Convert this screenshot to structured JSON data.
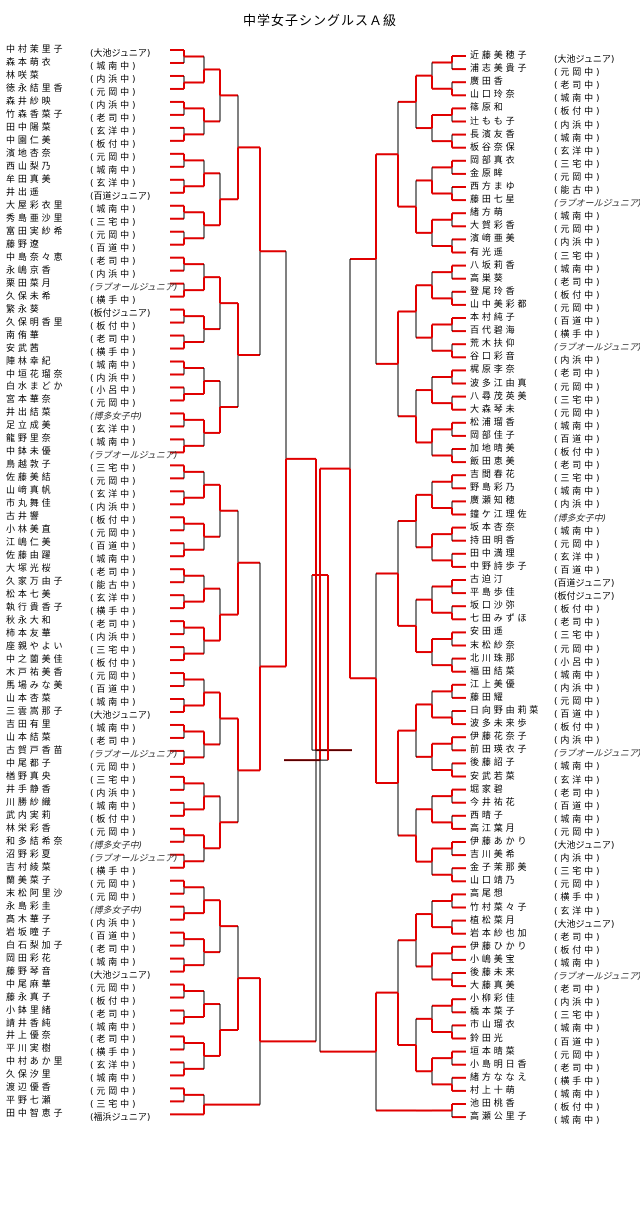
{
  "title": "中学女子シングルスＡ級",
  "left": [
    {
      "name": "中 村 茉 里 子",
      "school": "(大池ジュニア)"
    },
    {
      "name": "森 本 萌 衣",
      "school": "( 城 南 中 )"
    },
    {
      "name": "林 咲 菜",
      "school": "( 内 浜 中 )"
    },
    {
      "name": "徳 永 結 里 香",
      "school": "( 元 岡 中 )"
    },
    {
      "name": "森 井 紗 映",
      "school": "( 内 浜 中 )"
    },
    {
      "name": "竹 森 香 菜 子",
      "school": "( 老 司 中 )"
    },
    {
      "name": "田 中 陽 菜",
      "school": "( 玄 洋 中 )"
    },
    {
      "name": "中 園 仁 美",
      "school": "( 板 付 中 )"
    },
    {
      "name": "濱 地 杏 奈",
      "school": "( 元 岡 中 )"
    },
    {
      "name": "西 山 梨 乃",
      "school": "( 城 南 中 )"
    },
    {
      "name": "牟 田 真 美",
      "school": "( 玄 洋 中 )"
    },
    {
      "name": "井 出 遥",
      "school": "(百道ジュニア)"
    },
    {
      "name": "大 屋 彩 衣 里",
      "school": "( 城 南 中 )"
    },
    {
      "name": "秀 島 亜 沙 里",
      "school": "( 三 宅 中 )"
    },
    {
      "name": "富 田 実 紗 希",
      "school": "( 元 岡 中 )"
    },
    {
      "name": "藤 野 遼",
      "school": "( 百 道 中 )"
    },
    {
      "name": "中 島 奈 々 恵",
      "school": "( 老 司 中 )"
    },
    {
      "name": "永 嶋 京 香",
      "school": "( 内 浜 中 )"
    },
    {
      "name": "栗 田 菜 月",
      "school": "(ラブオールジュニア)"
    },
    {
      "name": "久 保 未 希",
      "school": "( 横 手 中 )"
    },
    {
      "name": "繁 永 葵",
      "school": "(板付ジュニア)"
    },
    {
      "name": "久 保 明 香 里",
      "school": "( 板 付 中 )"
    },
    {
      "name": "南 侑 華",
      "school": "( 老 司 中 )"
    },
    {
      "name": "安 武 茜",
      "school": "( 横 手 中 )"
    },
    {
      "name": "陣 林 幸 紀",
      "school": "( 城 南 中 )"
    },
    {
      "name": "中 垣 花 瑠 奈",
      "school": "( 内 浜 中 )"
    },
    {
      "name": "白 水 ま ど か",
      "school": "( 小 呂 中 )"
    },
    {
      "name": "宮 本 華 奈",
      "school": "( 元 岡 中 )"
    },
    {
      "name": "井 出 結 菜",
      "school": "(博多女子中)"
    },
    {
      "name": "足 立 成 美",
      "school": "( 玄 洋 中 )"
    },
    {
      "name": "龍 野 里 奈",
      "school": "( 城 南 中 )"
    },
    {
      "name": "中 鉢 未 優",
      "school": "(ラブオールジュニア)"
    },
    {
      "name": "鳥 越 敦 子",
      "school": "( 三 宅 中 )"
    },
    {
      "name": "佐 藤 美 結",
      "school": "( 元 岡 中 )"
    },
    {
      "name": "山 﨑 真 帆",
      "school": "( 玄 洋 中 )"
    },
    {
      "name": "市 丸 舞 佳",
      "school": "( 内 浜 中 )"
    },
    {
      "name": "古 井 響",
      "school": "( 板 付 中 )"
    },
    {
      "name": "小 林 美 直",
      "school": "( 元 岡 中 )"
    },
    {
      "name": "江 嶋 仁 美",
      "school": "( 百 道 中 )"
    },
    {
      "name": "佐 藤 由 躍",
      "school": "( 城 南 中 )"
    },
    {
      "name": "大 塚 光 桜",
      "school": "( 老 司 中 )"
    },
    {
      "name": "久 家 万 由 子",
      "school": "( 能 古 中 )"
    },
    {
      "name": "松 本 七 美",
      "school": "( 玄 洋 中 )"
    },
    {
      "name": "執 行 貴 香 子",
      "school": "( 横 手 中 )"
    },
    {
      "name": "秋 永 大 和",
      "school": "( 老 司 中 )"
    },
    {
      "name": "柿 本 友 華",
      "school": "( 内 浜 中 )"
    },
    {
      "name": "座 親 や よ い",
      "school": "( 三 宅 中 )"
    },
    {
      "name": "中 之 薗 美 佳",
      "school": "( 板 付 中 )"
    },
    {
      "name": "木 戸 祐 美 香",
      "school": "( 元 岡 中 )"
    },
    {
      "name": "馬 場 み な 美",
      "school": "( 百 道 中 )"
    },
    {
      "name": "山 本 杏 菜",
      "school": "( 城 南 中 )"
    },
    {
      "name": "三 雲 嵩 那 子",
      "school": "(大池ジュニア)"
    },
    {
      "name": "吉 田 有 里",
      "school": "( 城 南 中 )"
    },
    {
      "name": "山 本 結 菜",
      "school": "( 老 司 中 )"
    },
    {
      "name": "古 賀 戸 香 苗",
      "school": "(ラブオールジュニア)"
    },
    {
      "name": "中 尾 都 子",
      "school": "( 元 岡 中 )"
    },
    {
      "name": "楢 野 真 央",
      "school": "( 三 宅 中 )"
    },
    {
      "name": "井 手 静 香",
      "school": "( 内 浜 中 )"
    },
    {
      "name": "川 勝 紗 織",
      "school": "( 城 南 中 )"
    },
    {
      "name": "武 内 実 莉",
      "school": "( 板 付 中 )"
    },
    {
      "name": "林 栄 彩 香",
      "school": "( 元 岡 中 )"
    },
    {
      "name": "和 多 結 希 奈",
      "school": "(博多女子中)"
    },
    {
      "name": "沼 野 彩 夏",
      "school": "(ラブオールジュニア)"
    },
    {
      "name": "吉 村 綾 菜",
      "school": "( 横 手 中 )"
    },
    {
      "name": "蘭 美 菜 子",
      "school": "( 元 岡 中 )"
    },
    {
      "name": "末 松 阿 里 沙",
      "school": "( 元 岡 中 )"
    },
    {
      "name": "永 島 彩 圭",
      "school": "(博多女子中)"
    },
    {
      "name": "髙 木 華 子",
      "school": "( 内 浜 中 )"
    },
    {
      "name": "岩 坂 瞳 子",
      "school": "( 百 道 中 )"
    },
    {
      "name": "白 石 梨 加 子",
      "school": "( 老 司 中 )"
    },
    {
      "name": "岡 田 彩 花",
      "school": "( 城 南 中 )"
    },
    {
      "name": "藤 野 琴 音",
      "school": "(大池ジュニア)"
    },
    {
      "name": "中 尾 麻 華",
      "school": "( 元 岡 中 )"
    },
    {
      "name": "藤 永 真 子",
      "school": "( 板 付 中 )"
    },
    {
      "name": "小 鉢 里 緒",
      "school": "( 老 司 中 )"
    },
    {
      "name": "請 井 香 純",
      "school": "( 城 南 中 )"
    },
    {
      "name": "井 上 優 奈",
      "school": "( 老 司 中 )"
    },
    {
      "name": "平 川 実 樹",
      "school": "( 横 手 中 )"
    },
    {
      "name": "中 村 あ か 里",
      "school": "( 玄 洋 中 )"
    },
    {
      "name": "久 保 汐 里",
      "school": "( 城 南 中 )"
    },
    {
      "name": "渡 辺 優 香",
      "school": "( 元 岡 中 )"
    },
    {
      "name": "平 野 七 瀬",
      "school": "( 三 宅 中 )"
    },
    {
      "name": "田 中 智 恵 子",
      "school": "(福浜ジュニア)"
    }
  ],
  "right": [
    {
      "name": "近 藤 美 穂 子",
      "school": "(大池ジュニア)"
    },
    {
      "name": "浦 志 美 貴 子",
      "school": "( 元 岡 中 )"
    },
    {
      "name": "廣 田 香",
      "school": "( 老 司 中 )"
    },
    {
      "name": "山 口 玲 奈",
      "school": "( 城 南 中 )"
    },
    {
      "name": "篠 原 和",
      "school": "( 板 付 中 )"
    },
    {
      "name": "辻 も も 子",
      "school": "( 内 浜 中 )"
    },
    {
      "name": "長 濱 友 香",
      "school": "( 城 南 中 )"
    },
    {
      "name": "板 谷 奈 保",
      "school": "( 玄 洋 中 )"
    },
    {
      "name": "岡 部 真 衣",
      "school": "( 三 宅 中 )"
    },
    {
      "name": "金 原 眸",
      "school": "( 元 岡 中 )"
    },
    {
      "name": "西 方 ま ゆ",
      "school": "( 能 古 中 )"
    },
    {
      "name": "藤 田 七 星",
      "school": "(ラブオールジュニア)"
    },
    {
      "name": "緒 方 萌",
      "school": "( 城 南 中 )"
    },
    {
      "name": "大 賀 彩 香",
      "school": "( 元 岡 中 )"
    },
    {
      "name": "濱 﨑 亜 美",
      "school": "( 内 浜 中 )"
    },
    {
      "name": "有 光 遥",
      "school": "( 三 宅 中 )"
    },
    {
      "name": "八 坂 莉 香",
      "school": "( 城 南 中 )"
    },
    {
      "name": "高 巣 葵",
      "school": "( 老 司 中 )"
    },
    {
      "name": "登 尾 玲 香",
      "school": "( 板 付 中 )"
    },
    {
      "name": "山 中 美 彩 都",
      "school": "( 元 岡 中 )"
    },
    {
      "name": "本 村 純 子",
      "school": "( 百 道 中 )"
    },
    {
      "name": "百 代 碧 海",
      "school": "( 横 手 中 )"
    },
    {
      "name": "荒 木 扶 仰",
      "school": "(ラブオールジュニア)"
    },
    {
      "name": "谷 口 彩 音",
      "school": "( 内 浜 中 )"
    },
    {
      "name": "梶 原 李 奈",
      "school": "( 老 司 中 )"
    },
    {
      "name": "波 多 江 由 真",
      "school": "( 元 岡 中 )"
    },
    {
      "name": "八 尋 茂 英 美",
      "school": "( 三 宅 中 )"
    },
    {
      "name": "大 森 琴 未",
      "school": "( 元 岡 中 )"
    },
    {
      "name": "松 浦 瑠 香",
      "school": "( 城 南 中 )"
    },
    {
      "name": "岡 部 佳 子",
      "school": "( 百 道 中 )"
    },
    {
      "name": "加 地 晴 美",
      "school": "( 板 付 中 )"
    },
    {
      "name": "飯 田 恵 美",
      "school": "( 老 司 中 )"
    },
    {
      "name": "吉 間 春 花",
      "school": "( 三 宅 中 )"
    },
    {
      "name": "野 島 彩 乃",
      "school": "( 城 南 中 )"
    },
    {
      "name": "廣 瀬 知 穂",
      "school": "( 内 浜 中 )"
    },
    {
      "name": "鐘 ケ 江 理 佐",
      "school": "(博多女子中)"
    },
    {
      "name": "坂 本 杏 奈",
      "school": "( 城 南 中 )"
    },
    {
      "name": "持 田 明 香",
      "school": "( 元 岡 中 )"
    },
    {
      "name": "田 中 満 理",
      "school": "( 玄 洋 中 )"
    },
    {
      "name": "中 野 詩 歩 子",
      "school": "( 百 道 中 )"
    },
    {
      "name": "古 迫 汀",
      "school": "(百道ジュニア)"
    },
    {
      "name": "平 島 歩 佳",
      "school": "(板付ジュニア)"
    },
    {
      "name": "坂 口 沙 弥",
      "school": "( 板 付 中 )"
    },
    {
      "name": "七 田 み ず ほ",
      "school": "( 老 司 中 )"
    },
    {
      "name": "安 田 遥",
      "school": "( 三 宅 中 )"
    },
    {
      "name": "末 松 紗 奈",
      "school": "( 元 岡 中 )"
    },
    {
      "name": "北 川 珠 那",
      "school": "( 小 呂 中 )"
    },
    {
      "name": "福 田 結 菜",
      "school": "( 城 南 中 )"
    },
    {
      "name": "江 上 美 優",
      "school": "( 内 浜 中 )"
    },
    {
      "name": "藤 田 耀",
      "school": "( 元 岡 中 )"
    },
    {
      "name": "日 向 野 由 莉 菜",
      "school": "( 百 道 中 )"
    },
    {
      "name": "波 多 未 来 歩",
      "school": "( 板 付 中 )"
    },
    {
      "name": "伊 藤 花 奈 子",
      "school": "( 内 浜 中 )"
    },
    {
      "name": "前 田 瑛 衣 子",
      "school": "(ラブオールジュニア)"
    },
    {
      "name": "後 藤 詔 子",
      "school": "( 城 南 中 )"
    },
    {
      "name": "安 武 若 菜",
      "school": "( 玄 洋 中 )"
    },
    {
      "name": "堀 家 碧",
      "school": "( 老 司 中 )"
    },
    {
      "name": "今 井 祐 花",
      "school": "( 百 道 中 )"
    },
    {
      "name": "西 晴 子",
      "school": "( 城 南 中 )"
    },
    {
      "name": "高 江 葉 月",
      "school": "( 元 岡 中 )"
    },
    {
      "name": "伊 藤 あ か り",
      "school": "(大池ジュニア)"
    },
    {
      "name": "吉 川 美 希",
      "school": "( 内 浜 中 )"
    },
    {
      "name": "金 子 茉 那 美",
      "school": "( 三 宅 中 )"
    },
    {
      "name": "山 口 靖 乃",
      "school": "( 元 岡 中 )"
    },
    {
      "name": "高 尾 想",
      "school": "( 横 手 中 )"
    },
    {
      "name": "竹 村 菜 々 子",
      "school": "( 玄 洋 中 )"
    },
    {
      "name": "植 松 菜 月",
      "school": "(大池ジュニア)"
    },
    {
      "name": "岩 本 紗 也 加",
      "school": "( 老 司 中 )"
    },
    {
      "name": "伊 藤 ひ か り",
      "school": "( 板 付 中 )"
    },
    {
      "name": "小 嶋 美 宝",
      "school": "( 城 南 中 )"
    },
    {
      "name": "後 藤 未 来",
      "school": "(ラブオールジュニア)"
    },
    {
      "name": "大 藤 真 美",
      "school": "( 老 司 中 )"
    },
    {
      "name": "小 柳 彩 佳",
      "school": "( 内 浜 中 )"
    },
    {
      "name": "橋 本 菜 子",
      "school": "( 三 宅 中 )"
    },
    {
      "name": "市 山 瑠 衣",
      "school": "( 城 南 中 )"
    },
    {
      "name": "鈴 田 光",
      "school": "( 百 道 中 )"
    },
    {
      "name": "垣 本 晴 菜",
      "school": "( 元 岡 中 )"
    },
    {
      "name": "小 島 明 日 香",
      "school": "( 老 司 中 )"
    },
    {
      "name": "緒 方 な な え",
      "school": "( 横 手 中 )"
    },
    {
      "name": "村 上 十 萌",
      "school": "( 城 南 中 )"
    },
    {
      "name": "池 田 桃 香",
      "school": "( 板 付 中 )"
    },
    {
      "name": "高 瀬 公 里 子",
      "school": "( 城 南 中 )"
    }
  ],
  "colors": {
    "red": "#e00000",
    "black": "#000000"
  }
}
